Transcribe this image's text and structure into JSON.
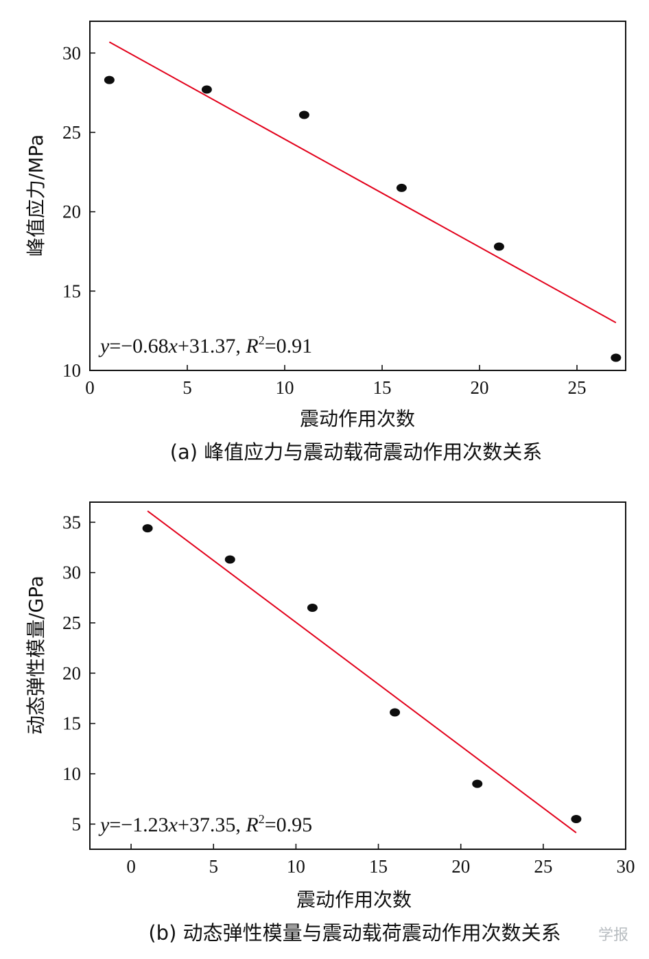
{
  "chart_data": [
    {
      "type": "scatter",
      "title": "",
      "caption": "(a) 峰值应力与震动载荷震动作用次数关系",
      "xlabel": "震动作用次数",
      "ylabel": "峰值应力/MPa",
      "xlim": [
        0,
        27.5
      ],
      "ylim": [
        10,
        32
      ],
      "xticks": [
        0,
        5,
        10,
        15,
        20,
        25
      ],
      "yticks": [
        10,
        15,
        20,
        25,
        30
      ],
      "grid": false,
      "series": [
        {
          "x": [
            1,
            6,
            11,
            16,
            21,
            27
          ],
          "y": [
            28.3,
            27.7,
            26.1,
            21.5,
            17.8,
            10.8
          ]
        }
      ],
      "fit": {
        "slope": -0.68,
        "intercept": 31.37,
        "x_range": [
          1,
          27
        ],
        "color": "#e2001a"
      },
      "equation": {
        "y": "y",
        "eq1": "=−0.68",
        "x": "x",
        "eq2": "+31.37, ",
        "R": "R",
        "sup": "2",
        "eq3": "=0.91"
      }
    },
    {
      "type": "scatter",
      "title": "",
      "caption": "(b) 动态弹性模量与震动载荷震动作用次数关系",
      "xlabel": "震动作用次数",
      "ylabel": "动态弹性模量/GPa",
      "xlim": [
        -2.5,
        30
      ],
      "ylim": [
        2.5,
        37
      ],
      "xticks": [
        0,
        5,
        10,
        15,
        20,
        25,
        30
      ],
      "yticks": [
        5,
        10,
        15,
        20,
        25,
        30,
        35
      ],
      "grid": false,
      "series": [
        {
          "x": [
            1,
            6,
            11,
            16,
            21,
            27
          ],
          "y": [
            34.4,
            31.3,
            26.5,
            16.1,
            9.0,
            5.5
          ]
        }
      ],
      "fit": {
        "slope": -1.23,
        "intercept": 37.35,
        "x_range": [
          1,
          27
        ],
        "color": "#e2001a"
      },
      "equation": {
        "y": "y",
        "eq1": "=−1.23",
        "x": "x",
        "eq2": "+37.35, ",
        "R": "R",
        "sup": "2",
        "eq3": "=0.95"
      }
    }
  ],
  "watermark": "学报",
  "colors": {
    "point": "#0d0d0d",
    "fit_line": "#e2001a",
    "axis": "#111111"
  }
}
